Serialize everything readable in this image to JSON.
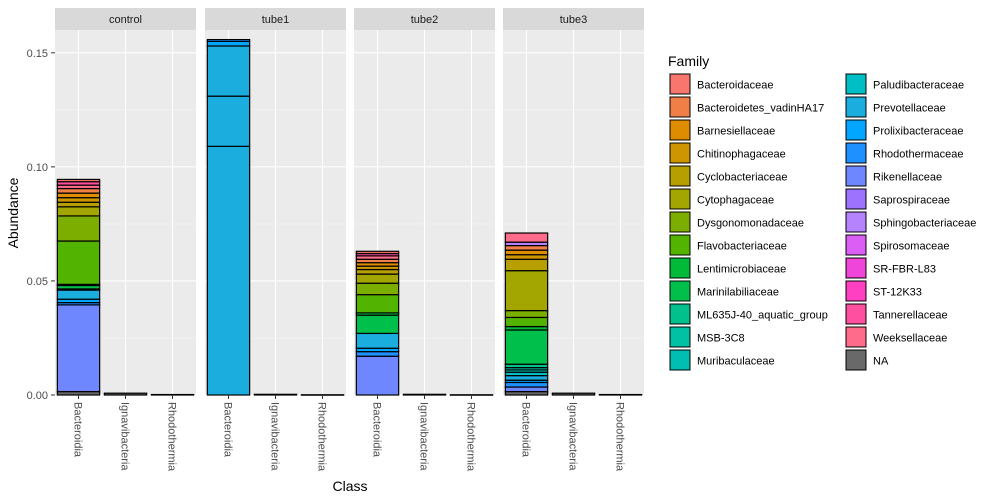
{
  "chart_data": {
    "type": "bar",
    "stacked": true,
    "xlabel": "Class",
    "ylabel": "Abundance",
    "ylim": [
      0,
      0.16
    ],
    "y_ticks": [
      "0.00",
      "0.05",
      "0.10",
      "0.15"
    ],
    "y_tick_values": [
      0,
      0.05,
      0.1,
      0.15
    ],
    "grid": true,
    "legend_position": "right",
    "legend_title": "Family",
    "categories": [
      "Bacteroidia",
      "Ignavibacteria",
      "Rhodothermia"
    ],
    "families": [
      {
        "name": "Bacteroidaceae",
        "color": "#F8766D"
      },
      {
        "name": "Bacteroidetes_vadinHA17",
        "color": "#EF7F47"
      },
      {
        "name": "Barnesiellaceae",
        "color": "#DE8C00"
      },
      {
        "name": "Chitinophagaceae",
        "color": "#CD9600"
      },
      {
        "name": "Cyclobacteriaceae",
        "color": "#B79F00"
      },
      {
        "name": "Cytophagaceae",
        "color": "#A3A500"
      },
      {
        "name": "Dysgonomonadaceae",
        "color": "#7CAE00"
      },
      {
        "name": "Flavobacteriaceae",
        "color": "#53B400"
      },
      {
        "name": "Lentimicrobiaceae",
        "color": "#00BA38"
      },
      {
        "name": "Marinilabiliaceae",
        "color": "#00BF4B"
      },
      {
        "name": "ML635J-40_aquatic_group",
        "color": "#00C08B"
      },
      {
        "name": "MSB-3C8",
        "color": "#00C1A3"
      },
      {
        "name": "Muribaculaceae",
        "color": "#00BFB2"
      },
      {
        "name": "Paludibacteraceae",
        "color": "#00BFC4"
      },
      {
        "name": "Prevotellaceae",
        "color": "#1BADDD"
      },
      {
        "name": "Prolixibacteraceae",
        "color": "#00A6FF"
      },
      {
        "name": "Rhodothermaceae",
        "color": "#1E90FF"
      },
      {
        "name": "Rikenellaceae",
        "color": "#6E87FF"
      },
      {
        "name": "Saprospiraceae",
        "color": "#9D72FF"
      },
      {
        "name": "Sphingobacteriaceae",
        "color": "#B683FF"
      },
      {
        "name": "Spirosomaceae",
        "color": "#DB5EF5"
      },
      {
        "name": "SR-FBR-L83",
        "color": "#EF45D9"
      },
      {
        "name": "ST-12K33",
        "color": "#FF40C2"
      },
      {
        "name": "Tannerellaceae",
        "color": "#FF4FA0"
      },
      {
        "name": "Weeksellaceae",
        "color": "#FF6C8B"
      },
      {
        "name": "NA",
        "color": "#696969"
      }
    ],
    "panels": [
      {
        "name": "control",
        "bars": [
          {
            "category": "Bacteroidia",
            "segments": [
              {
                "family": "NA",
                "value": 0.0015
              },
              {
                "family": "Rikenellaceae",
                "value": 0.038
              },
              {
                "family": "Rhodothermaceae",
                "value": 0.001
              },
              {
                "family": "Prolixibacteraceae",
                "value": 0.0015
              },
              {
                "family": "Prevotellaceae",
                "value": 0.004
              },
              {
                "family": "Muribaculaceae",
                "value": 0.0005
              },
              {
                "family": "Marinilabiliaceae",
                "value": 0.0015
              },
              {
                "family": "Lentimicrobiaceae",
                "value": 0.0005
              },
              {
                "family": "Flavobacteriaceae",
                "value": 0.019
              },
              {
                "family": "Dysgonomonadaceae",
                "value": 0.011
              },
              {
                "family": "Cytophagaceae",
                "value": 0.004
              },
              {
                "family": "Cyclobacteriaceae",
                "value": 0.002
              },
              {
                "family": "Chitinophagaceae",
                "value": 0.002
              },
              {
                "family": "Barnesiellaceae",
                "value": 0.002
              },
              {
                "family": "Bacteroidetes_vadinHA17",
                "value": 0.002
              },
              {
                "family": "Weeksellaceae",
                "value": 0.0015
              },
              {
                "family": "Tannerellaceae",
                "value": 0.0015
              },
              {
                "family": "Bacteroidaceae",
                "value": 0.001
              }
            ]
          },
          {
            "category": "Ignavibacteria",
            "segments": [
              {
                "family": "NA",
                "value": 0.0008
              }
            ]
          },
          {
            "category": "Rhodothermia",
            "segments": [
              {
                "family": "Rhodothermaceae",
                "value": 0.0002
              }
            ]
          }
        ]
      },
      {
        "name": "tube1",
        "bars": [
          {
            "category": "Bacteroidia",
            "segments": [
              {
                "family": "Prevotellaceae",
                "value": 0.109
              },
              {
                "family": "Prevotellaceae",
                "value": 0.022
              },
              {
                "family": "Prevotellaceae",
                "value": 0.022
              },
              {
                "family": "Prolixibacteraceae",
                "value": 0.002
              },
              {
                "family": "Rhodothermaceae",
                "value": 0.0008
              }
            ]
          },
          {
            "category": "Ignavibacteria",
            "segments": [
              {
                "family": "NA",
                "value": 0.0003
              }
            ]
          },
          {
            "category": "Rhodothermia",
            "segments": [
              {
                "family": "Rhodothermaceae",
                "value": 0.0001
              }
            ]
          }
        ]
      },
      {
        "name": "tube2",
        "bars": [
          {
            "category": "Bacteroidia",
            "segments": [
              {
                "family": "Rikenellaceae",
                "value": 0.017
              },
              {
                "family": "Rhodothermaceae",
                "value": 0.002
              },
              {
                "family": "Prolixibacteraceae",
                "value": 0.0015
              },
              {
                "family": "Prevotellaceae",
                "value": 0.0065
              },
              {
                "family": "Marinilabiliaceae",
                "value": 0.008
              },
              {
                "family": "Lentimicrobiaceae",
                "value": 0.001
              },
              {
                "family": "Flavobacteriaceae",
                "value": 0.008
              },
              {
                "family": "Dysgonomonadaceae",
                "value": 0.005
              },
              {
                "family": "Cytophagaceae",
                "value": 0.004
              },
              {
                "family": "Cyclobacteriaceae",
                "value": 0.002
              },
              {
                "family": "Chitinophagaceae",
                "value": 0.0015
              },
              {
                "family": "Barnesiellaceae",
                "value": 0.0015
              },
              {
                "family": "Bacteroidetes_vadinHA17",
                "value": 0.0015
              },
              {
                "family": "Weeksellaceae",
                "value": 0.0015
              },
              {
                "family": "Tannerellaceae",
                "value": 0.001
              },
              {
                "family": "Bacteroidaceae",
                "value": 0.001
              }
            ]
          },
          {
            "category": "Ignavibacteria",
            "segments": [
              {
                "family": "NA",
                "value": 0.0003
              }
            ]
          },
          {
            "category": "Rhodothermia",
            "segments": [
              {
                "family": "Rhodothermaceae",
                "value": 0.0001
              }
            ]
          }
        ]
      },
      {
        "name": "tube3",
        "bars": [
          {
            "category": "Bacteroidia",
            "segments": [
              {
                "family": "NA",
                "value": 0.0015
              },
              {
                "family": "Rikenellaceae",
                "value": 0.002
              },
              {
                "family": "Rhodothermaceae",
                "value": 0.002
              },
              {
                "family": "Prolixibacteraceae",
                "value": 0.001
              },
              {
                "family": "Prevotellaceae",
                "value": 0.002
              },
              {
                "family": "Paludibacteraceae",
                "value": 0.0015
              },
              {
                "family": "Muribaculaceae",
                "value": 0.001
              },
              {
                "family": "MSB-3C8",
                "value": 0.001
              },
              {
                "family": "ML635J-40_aquatic_group",
                "value": 0.0015
              },
              {
                "family": "Marinilabiliaceae",
                "value": 0.015
              },
              {
                "family": "Lentimicrobiaceae",
                "value": 0.0015
              },
              {
                "family": "Flavobacteriaceae",
                "value": 0.004
              },
              {
                "family": "Dysgonomonadaceae",
                "value": 0.003
              },
              {
                "family": "Cytophagaceae",
                "value": 0.0175
              },
              {
                "family": "Cyclobacteriaceae",
                "value": 0.005
              },
              {
                "family": "Chitinophagaceae",
                "value": 0.002
              },
              {
                "family": "Barnesiellaceae",
                "value": 0.002
              },
              {
                "family": "Bacteroidetes_vadinHA17",
                "value": 0.002
              },
              {
                "family": "Sphingobacteriaceae",
                "value": 0.0015
              },
              {
                "family": "Weeksellaceae",
                "value": 0.004
              }
            ]
          },
          {
            "category": "Ignavibacteria",
            "segments": [
              {
                "family": "NA",
                "value": 0.0008
              }
            ]
          },
          {
            "category": "Rhodothermia",
            "segments": [
              {
                "family": "Rhodothermaceae",
                "value": 0.0002
              }
            ]
          }
        ]
      }
    ]
  }
}
